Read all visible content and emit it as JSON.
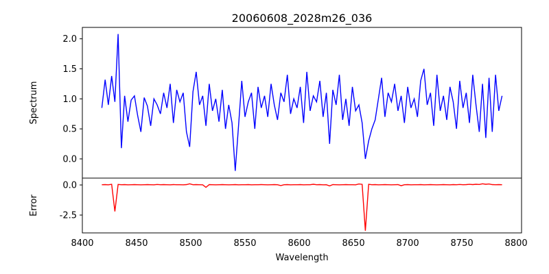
{
  "chart_data": {
    "type": "line",
    "title": "20060608_2028m26_036",
    "xlabel": "Wavelength",
    "xlim": [
      8400,
      8805
    ],
    "xticks": [
      8400,
      8450,
      8500,
      8550,
      8600,
      8650,
      8700,
      8750,
      8800
    ],
    "x_start": 8418,
    "x_step": 3,
    "panels": [
      {
        "name": "spectrum",
        "ylabel": "Spectrum",
        "ylim": [
          -0.32,
          2.19
        ],
        "yticks": [
          "0.0",
          "0.5",
          "1.0",
          "1.5",
          "2.0"
        ],
        "color": "#0000ff",
        "values": [
          0.85,
          1.32,
          0.9,
          1.38,
          0.95,
          2.08,
          0.18,
          1.05,
          0.62,
          0.98,
          1.05,
          0.72,
          0.45,
          1.02,
          0.88,
          0.55,
          1.0,
          0.9,
          0.75,
          1.1,
          0.85,
          1.25,
          0.6,
          1.15,
          0.95,
          1.1,
          0.45,
          0.2,
          1.12,
          1.45,
          0.9,
          1.05,
          0.55,
          1.25,
          0.8,
          1.0,
          0.62,
          1.15,
          0.5,
          0.9,
          0.6,
          -0.2,
          0.55,
          1.3,
          0.7,
          0.95,
          1.1,
          0.5,
          1.2,
          0.85,
          1.05,
          0.7,
          1.25,
          0.9,
          0.65,
          1.1,
          0.95,
          1.4,
          0.75,
          1.0,
          0.85,
          1.2,
          0.6,
          1.45,
          0.8,
          1.05,
          0.95,
          1.3,
          0.7,
          1.1,
          0.25,
          1.15,
          0.9,
          1.4,
          0.65,
          1.0,
          0.55,
          1.2,
          0.8,
          0.9,
          0.6,
          0.0,
          0.3,
          0.5,
          0.65,
          1.0,
          1.35,
          0.7,
          1.1,
          0.95,
          1.25,
          0.8,
          1.05,
          0.6,
          1.2,
          0.85,
          1.0,
          0.7,
          1.3,
          1.5,
          0.9,
          1.1,
          0.55,
          1.4,
          0.8,
          1.05,
          0.65,
          1.2,
          0.95,
          0.5,
          1.3,
          0.85,
          1.1,
          0.6,
          1.4,
          0.9,
          0.45,
          1.25,
          0.35,
          1.35,
          0.45,
          1.4,
          0.8,
          1.05
        ]
      },
      {
        "name": "error",
        "ylabel": "Error",
        "ylim": [
          -3.98,
          0.57
        ],
        "yticks": [
          "0.0",
          "-2.5"
        ],
        "color": "#ff0000",
        "values": [
          0.02,
          0.03,
          0.01,
          0.05,
          -2.2,
          0.04,
          0.02,
          0.03,
          0.01,
          0.02,
          0.03,
          0.02,
          0.01,
          0.02,
          0.03,
          0.02,
          0.01,
          0.04,
          0.02,
          0.03,
          0.02,
          0.01,
          0.03,
          0.02,
          0.02,
          0.01,
          0.03,
          0.1,
          0.02,
          0.03,
          0.02,
          0.01,
          -0.2,
          0.03,
          0.02,
          0.01,
          0.02,
          0.03,
          0.02,
          0.01,
          0.02,
          0.03,
          0.01,
          0.02,
          0.02,
          0.03,
          0.01,
          0.02,
          0.02,
          0.03,
          0.02,
          0.01,
          0.02,
          0.03,
          0.02,
          -0.05,
          0.02,
          0.03,
          0.01,
          0.02,
          0.02,
          0.03,
          0.01,
          0.02,
          0.02,
          0.06,
          0.02,
          0.03,
          0.01,
          0.02,
          -0.08,
          0.03,
          0.02,
          0.01,
          0.02,
          0.03,
          0.02,
          0.02,
          0.01,
          0.08,
          0.05,
          -3.8,
          0.06,
          0.02,
          0.03,
          0.01,
          0.02,
          0.03,
          0.02,
          0.01,
          0.02,
          0.03,
          -0.06,
          0.02,
          0.03,
          0.01,
          0.02,
          0.02,
          0.03,
          0.01,
          0.02,
          0.03,
          0.02,
          0.01,
          0.02,
          0.03,
          0.02,
          0.01,
          0.03,
          0.02,
          0.04,
          0.02,
          0.03,
          0.05,
          0.03,
          0.06,
          0.04,
          0.1,
          0.06,
          0.08,
          0.03,
          0.02,
          0.03,
          0.02
        ]
      }
    ]
  }
}
